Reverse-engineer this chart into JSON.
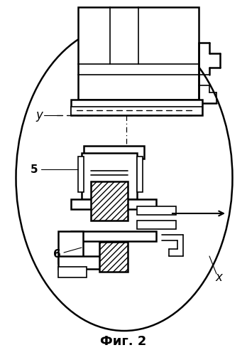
{
  "title": "Фиг. 2",
  "bg_color": "#ffffff",
  "line_color": "#000000",
  "labels": {
    "y_label": "y",
    "x_label": "x",
    "label_5": "5",
    "label_6": "6"
  },
  "figsize": [
    3.48,
    4.99
  ],
  "dpi": 100
}
